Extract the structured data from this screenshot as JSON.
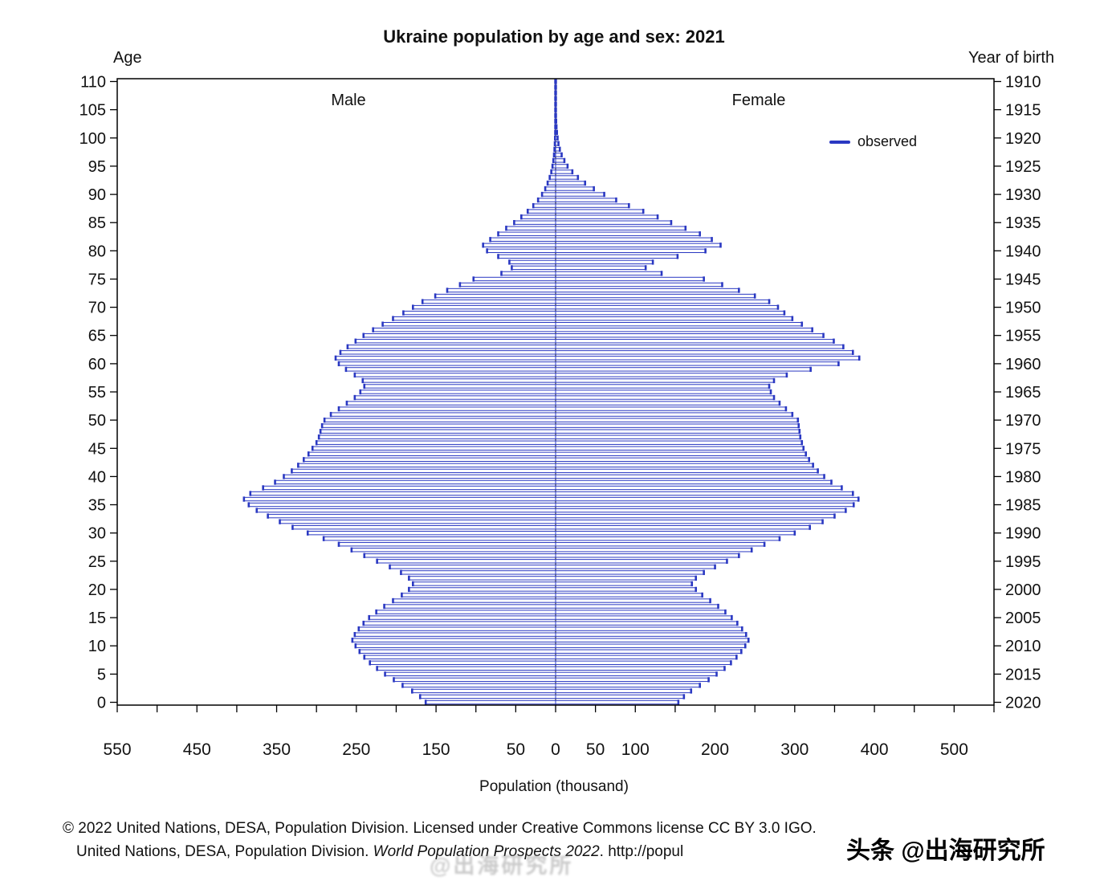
{
  "chart": {
    "title": "Ukraine population by age and sex: 2021",
    "age_axis_title": "Age",
    "yob_axis_title": "Year of birth",
    "x_axis_title": "Population (thousand)",
    "male_label": "Male",
    "female_label": "Female",
    "legend_label": "observed"
  },
  "footer": {
    "line1": "© 2022 United Nations, DESA, Population Division. Licensed under Creative Commons license CC BY 3.0 IGO.",
    "line2_a": "United Nations, DESA, Population Division. ",
    "line2_b": "World Population Prospects 2022",
    "line2_c": ". http://popul",
    "watermark": "头条 @出海研究所",
    "watermark_faint": "@出海研究所"
  },
  "chart_data": {
    "type": "bar",
    "subtype": "population-pyramid",
    "title": "Ukraine population by age and sex: 2021",
    "xlabel": "Population (thousand)",
    "ylabel_left": "Age",
    "ylabel_right": "Year of birth",
    "legend": {
      "label": "observed",
      "position": "top-right"
    },
    "units": "thousand persons, single year of age 0-110",
    "x_max": 550,
    "x_tick_step": 50,
    "x_tick_labels": [
      {
        "value": -550,
        "label": "550"
      },
      {
        "value": -450,
        "label": "450"
      },
      {
        "value": -350,
        "label": "350"
      },
      {
        "value": -250,
        "label": "250"
      },
      {
        "value": -150,
        "label": "150"
      },
      {
        "value": -50,
        "label": "50"
      },
      {
        "value": 0,
        "label": "0"
      },
      {
        "value": 50,
        "label": "50"
      },
      {
        "value": 100,
        "label": "100"
      },
      {
        "value": 200,
        "label": "200"
      },
      {
        "value": 300,
        "label": "300"
      },
      {
        "value": 400,
        "label": "400"
      },
      {
        "value": 500,
        "label": "500"
      }
    ],
    "age_min": 0,
    "age_max": 110,
    "age_ticks": [
      0,
      5,
      10,
      15,
      20,
      25,
      30,
      35,
      40,
      45,
      50,
      55,
      60,
      65,
      70,
      75,
      80,
      85,
      90,
      95,
      100,
      105,
      110
    ],
    "year_zero": 2020,
    "year_ticks": [
      2020,
      2015,
      2010,
      2005,
      2000,
      1995,
      1990,
      1985,
      1980,
      1975,
      1970,
      1965,
      1960,
      1955,
      1950,
      1945,
      1940,
      1935,
      1930,
      1925,
      1920,
      1915,
      1910
    ],
    "colors": {
      "bar": "#2a38c2",
      "axis": "#000000"
    },
    "series": [
      {
        "name": "Male",
        "side": "left",
        "values": [
          163,
          170,
          180,
          192,
          203,
          214,
          224,
          233,
          240,
          246,
          251,
          255,
          252,
          247,
          241,
          234,
          225,
          215,
          204,
          193,
          184,
          179,
          184,
          194,
          208,
          224,
          240,
          256,
          272,
          291,
          311,
          330,
          346,
          361,
          375,
          385,
          391,
          383,
          367,
          352,
          341,
          331,
          323,
          316,
          310,
          305,
          300,
          297,
          295,
          293,
          290,
          282,
          272,
          262,
          252,
          245,
          240,
          242,
          252,
          263,
          272,
          276,
          270,
          261,
          251,
          241,
          229,
          217,
          204,
          191,
          179,
          167,
          151,
          136,
          120,
          103,
          68,
          55,
          58,
          72,
          86,
          91,
          82,
          72,
          62,
          52,
          43,
          35,
          28,
          22,
          17,
          13,
          10,
          7.4,
          5.4,
          3.9,
          2.8,
          2,
          1.4,
          1,
          0.7,
          0.5,
          0.33,
          0.22,
          0.14,
          0.09,
          0.06,
          0.04,
          0.02,
          0.01,
          0.01
        ]
      },
      {
        "name": "Female",
        "side": "right",
        "values": [
          154,
          161,
          170,
          181,
          192,
          202,
          212,
          220,
          227,
          233,
          238,
          242,
          239,
          234,
          228,
          221,
          213,
          204,
          194,
          184,
          176,
          171,
          176,
          186,
          200,
          215,
          230,
          246,
          262,
          281,
          300,
          319,
          335,
          350,
          364,
          374,
          380,
          373,
          359,
          346,
          337,
          329,
          323,
          318,
          314,
          311,
          309,
          307,
          306,
          305,
          304,
          297,
          289,
          281,
          274,
          270,
          268,
          274,
          290,
          320,
          355,
          381,
          373,
          361,
          349,
          336,
          322,
          309,
          297,
          287,
          279,
          268,
          250,
          230,
          209,
          186,
          133,
          113,
          122,
          153,
          188,
          207,
          196,
          181,
          163,
          145,
          128,
          110,
          92,
          76,
          61,
          48,
          37,
          28,
          21,
          15,
          11,
          7.6,
          5.3,
          3.6,
          2.5,
          1.7,
          1.1,
          0.7,
          0.45,
          0.28,
          0.17,
          0.1,
          0.06,
          0.03,
          0.02
        ]
      }
    ]
  }
}
